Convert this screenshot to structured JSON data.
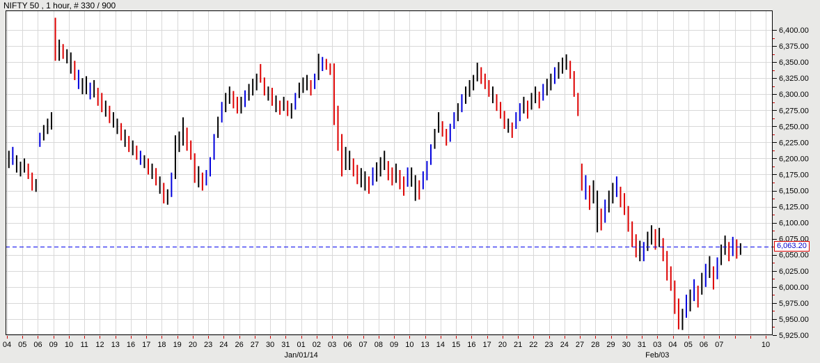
{
  "title": "NIFTY 50 , 1 hour, # 330 / 900",
  "last_price": {
    "label": "6,063.20",
    "value": 6063.2
  },
  "colors": {
    "background": "#e9e9e7",
    "plot_background": "#ffffff",
    "grid": "#d8d8d8",
    "border": "#000000",
    "bar_black": "#000000",
    "bar_red": "#dd0000",
    "bar_blue": "#0000dd",
    "dashed_line": "#0000ee",
    "minor_tick_red": "#cc0000",
    "price_label_text": "#0000cc",
    "price_label_border": "#e00000"
  },
  "chart_data": {
    "type": "bar",
    "style": "hlc-vertical-range-bars",
    "title": "NIFTY 50 , 1 hour, # 330 / 900",
    "xlabel": "",
    "ylabel": "",
    "grid": true,
    "legend": "none",
    "y_axis": {
      "tick_max": 6400,
      "tick_min": 5925,
      "step": 25,
      "labels": [
        "6,400.00",
        "6,375.00",
        "6,350.00",
        "6,325.00",
        "6,300.00",
        "6,275.00",
        "6,250.00",
        "6,225.00",
        "6,200.00",
        "6,175.00",
        "6,150.00",
        "6,125.00",
        "6,100.00",
        "6,075.00",
        "6,050.00",
        "6,025.00",
        "6,000.00",
        "5,975.00",
        "5,950.00",
        "5,925.00"
      ]
    },
    "x_axis": {
      "slot_count": 50,
      "labels": [
        {
          "t": "04",
          "s": 0
        },
        {
          "t": "05",
          "s": 1
        },
        {
          "t": "06",
          "s": 2
        },
        {
          "t": "09",
          "s": 3
        },
        {
          "t": "10",
          "s": 4
        },
        {
          "t": "11",
          "s": 5
        },
        {
          "t": "12",
          "s": 6
        },
        {
          "t": "13",
          "s": 7
        },
        {
          "t": "16",
          "s": 8
        },
        {
          "t": "17",
          "s": 9
        },
        {
          "t": "18",
          "s": 10
        },
        {
          "t": "19",
          "s": 11
        },
        {
          "t": "20",
          "s": 12
        },
        {
          "t": "23",
          "s": 13
        },
        {
          "t": "24",
          "s": 14
        },
        {
          "t": "26",
          "s": 15
        },
        {
          "t": "27",
          "s": 16
        },
        {
          "t": "30",
          "s": 17
        },
        {
          "t": "31",
          "s": 18
        },
        {
          "t": "01",
          "s": 19
        },
        {
          "t": "02",
          "s": 20
        },
        {
          "t": "03",
          "s": 21
        },
        {
          "t": "06",
          "s": 22
        },
        {
          "t": "07",
          "s": 23
        },
        {
          "t": "08",
          "s": 24
        },
        {
          "t": "09",
          "s": 25
        },
        {
          "t": "10",
          "s": 26
        },
        {
          "t": "13",
          "s": 27
        },
        {
          "t": "14",
          "s": 28
        },
        {
          "t": "15",
          "s": 29
        },
        {
          "t": "16",
          "s": 30
        },
        {
          "t": "17",
          "s": 31
        },
        {
          "t": "20",
          "s": 32
        },
        {
          "t": "21",
          "s": 33
        },
        {
          "t": "22",
          "s": 34
        },
        {
          "t": "23",
          "s": 35
        },
        {
          "t": "24",
          "s": 36
        },
        {
          "t": "27",
          "s": 37
        },
        {
          "t": "28",
          "s": 38
        },
        {
          "t": "29",
          "s": 39
        },
        {
          "t": "30",
          "s": 40
        },
        {
          "t": "31",
          "s": 41
        },
        {
          "t": "03",
          "s": 42
        },
        {
          "t": "04",
          "s": 43
        },
        {
          "t": "05",
          "s": 44
        },
        {
          "t": "06",
          "s": 45
        },
        {
          "t": "07",
          "s": 46
        },
        {
          "t": "10",
          "s": 49
        }
      ],
      "month_labels": [
        {
          "t": "Jan/01/14",
          "s": 19
        },
        {
          "t": "Feb/03",
          "s": 42
        }
      ]
    },
    "last_price": 6063.2,
    "bars_per_day": 4,
    "bars": [
      [
        6212,
        6185,
        "k"
      ],
      [
        6218,
        6190,
        "b"
      ],
      [
        6205,
        6178,
        "k"
      ],
      [
        6195,
        6172,
        "k"
      ],
      [
        6200,
        6178,
        "k"
      ],
      [
        6192,
        6168,
        "r"
      ],
      [
        6178,
        6150,
        "r"
      ],
      [
        6168,
        6148,
        "k"
      ],
      [
        6240,
        6218,
        "b"
      ],
      [
        6252,
        6228,
        "k"
      ],
      [
        6262,
        6238,
        "k"
      ],
      [
        6272,
        6245,
        "k"
      ],
      [
        6419,
        6352,
        "r"
      ],
      [
        6385,
        6352,
        "k"
      ],
      [
        6378,
        6355,
        "r"
      ],
      [
        6370,
        6348,
        "k"
      ],
      [
        6365,
        6332,
        "k"
      ],
      [
        6352,
        6322,
        "r"
      ],
      [
        6338,
        6308,
        "b"
      ],
      [
        6325,
        6300,
        "k"
      ],
      [
        6328,
        6300,
        "k"
      ],
      [
        6318,
        6292,
        "b"
      ],
      [
        6322,
        6295,
        "k"
      ],
      [
        6310,
        6282,
        "r"
      ],
      [
        6302,
        6272,
        "r"
      ],
      [
        6290,
        6265,
        "k"
      ],
      [
        6282,
        6255,
        "r"
      ],
      [
        6272,
        6248,
        "k"
      ],
      [
        6262,
        6238,
        "k"
      ],
      [
        6255,
        6228,
        "r"
      ],
      [
        6245,
        6218,
        "k"
      ],
      [
        6235,
        6210,
        "r"
      ],
      [
        6228,
        6205,
        "k"
      ],
      [
        6220,
        6198,
        "r"
      ],
      [
        6212,
        6190,
        "b"
      ],
      [
        6205,
        6185,
        "k"
      ],
      [
        6200,
        6175,
        "r"
      ],
      [
        6192,
        6168,
        "k"
      ],
      [
        6185,
        6158,
        "r"
      ],
      [
        6172,
        6145,
        "k"
      ],
      [
        6162,
        6130,
        "r"
      ],
      [
        6152,
        6128,
        "k"
      ],
      [
        6178,
        6140,
        "b"
      ],
      [
        6236,
        6168,
        "k"
      ],
      [
        6242,
        6210,
        "k"
      ],
      [
        6264,
        6220,
        "k"
      ],
      [
        6248,
        6212,
        "r"
      ],
      [
        6228,
        6198,
        "r"
      ],
      [
        6208,
        6162,
        "r"
      ],
      [
        6188,
        6155,
        "k"
      ],
      [
        6178,
        6150,
        "r"
      ],
      [
        6182,
        6158,
        "b"
      ],
      [
        6202,
        6172,
        "b"
      ],
      [
        6238,
        6198,
        "b"
      ],
      [
        6265,
        6232,
        "k"
      ],
      [
        6288,
        6256,
        "b"
      ],
      [
        6302,
        6272,
        "k"
      ],
      [
        6312,
        6285,
        "k"
      ],
      [
        6305,
        6278,
        "r"
      ],
      [
        6296,
        6270,
        "r"
      ],
      [
        6296,
        6270,
        "k"
      ],
      [
        6306,
        6280,
        "b"
      ],
      [
        6316,
        6290,
        "k"
      ],
      [
        6324,
        6298,
        "k"
      ],
      [
        6332,
        6306,
        "k"
      ],
      [
        6347,
        6318,
        "r"
      ],
      [
        6326,
        6298,
        "r"
      ],
      [
        6312,
        6290,
        "k"
      ],
      [
        6310,
        6282,
        "r"
      ],
      [
        6298,
        6272,
        "k"
      ],
      [
        6290,
        6268,
        "r"
      ],
      [
        6296,
        6274,
        "k"
      ],
      [
        6290,
        6266,
        "r"
      ],
      [
        6286,
        6262,
        "k"
      ],
      [
        6302,
        6276,
        "b"
      ],
      [
        6318,
        6294,
        "k"
      ],
      [
        6326,
        6302,
        "k"
      ],
      [
        6330,
        6306,
        "k"
      ],
      [
        6322,
        6298,
        "r"
      ],
      [
        6332,
        6308,
        "b"
      ],
      [
        6363,
        6322,
        "k"
      ],
      [
        6358,
        6336,
        "b"
      ],
      [
        6355,
        6338,
        "r"
      ],
      [
        6348,
        6330,
        "r"
      ],
      [
        6348,
        6252,
        "r"
      ],
      [
        6282,
        6212,
        "r"
      ],
      [
        6238,
        6172,
        "r"
      ],
      [
        6218,
        6182,
        "k"
      ],
      [
        6212,
        6182,
        "k"
      ],
      [
        6200,
        6172,
        "r"
      ],
      [
        6190,
        6160,
        "r"
      ],
      [
        6185,
        6155,
        "k"
      ],
      [
        6180,
        6150,
        "k"
      ],
      [
        6172,
        6145,
        "r"
      ],
      [
        6186,
        6158,
        "b"
      ],
      [
        6194,
        6164,
        "k"
      ],
      [
        6202,
        6172,
        "k"
      ],
      [
        6212,
        6182,
        "k"
      ],
      [
        6196,
        6166,
        "r"
      ],
      [
        6186,
        6158,
        "r"
      ],
      [
        6192,
        6162,
        "k"
      ],
      [
        6182,
        6152,
        "r"
      ],
      [
        6172,
        6142,
        "r"
      ],
      [
        6186,
        6156,
        "b"
      ],
      [
        6186,
        6156,
        "k"
      ],
      [
        6174,
        6134,
        "k"
      ],
      [
        6166,
        6136,
        "r"
      ],
      [
        6180,
        6152,
        "b"
      ],
      [
        6196,
        6166,
        "b"
      ],
      [
        6222,
        6190,
        "b"
      ],
      [
        6246,
        6215,
        "k"
      ],
      [
        6272,
        6240,
        "k"
      ],
      [
        6258,
        6234,
        "r"
      ],
      [
        6246,
        6220,
        "r"
      ],
      [
        6254,
        6226,
        "b"
      ],
      [
        6272,
        6246,
        "b"
      ],
      [
        6286,
        6258,
        "k"
      ],
      [
        6300,
        6272,
        "b"
      ],
      [
        6312,
        6285,
        "k"
      ],
      [
        6322,
        6296,
        "k"
      ],
      [
        6330,
        6306,
        "k"
      ],
      [
        6349,
        6320,
        "k"
      ],
      [
        6342,
        6316,
        "r"
      ],
      [
        6332,
        6308,
        "r"
      ],
      [
        6322,
        6296,
        "r"
      ],
      [
        6312,
        6286,
        "k"
      ],
      [
        6300,
        6274,
        "r"
      ],
      [
        6288,
        6262,
        "r"
      ],
      [
        6274,
        6246,
        "r"
      ],
      [
        6262,
        6240,
        "k"
      ],
      [
        6256,
        6232,
        "r"
      ],
      [
        6272,
        6246,
        "b"
      ],
      [
        6286,
        6258,
        "b"
      ],
      [
        6296,
        6270,
        "k"
      ],
      [
        6290,
        6262,
        "r"
      ],
      [
        6302,
        6276,
        "k"
      ],
      [
        6312,
        6286,
        "k"
      ],
      [
        6304,
        6278,
        "r"
      ],
      [
        6316,
        6290,
        "b"
      ],
      [
        6324,
        6298,
        "k"
      ],
      [
        6332,
        6306,
        "k"
      ],
      [
        6342,
        6316,
        "b"
      ],
      [
        6350,
        6324,
        "k"
      ],
      [
        6357,
        6332,
        "k"
      ],
      [
        6362,
        6338,
        "k"
      ],
      [
        6352,
        6324,
        "r"
      ],
      [
        6336,
        6296,
        "r"
      ],
      [
        6302,
        6266,
        "r"
      ],
      [
        6192,
        6150,
        "r"
      ],
      [
        6174,
        6136,
        "b"
      ],
      [
        6158,
        6120,
        "r"
      ],
      [
        6166,
        6130,
        "k"
      ],
      [
        6150,
        6085,
        "k"
      ],
      [
        6122,
        6088,
        "r"
      ],
      [
        6136,
        6100,
        "b"
      ],
      [
        6150,
        6116,
        "k"
      ],
      [
        6162,
        6130,
        "k"
      ],
      [
        6172,
        6140,
        "b"
      ],
      [
        6156,
        6124,
        "r"
      ],
      [
        6146,
        6112,
        "r"
      ],
      [
        6126,
        6086,
        "r"
      ],
      [
        6102,
        6062,
        "r"
      ],
      [
        6082,
        6046,
        "r"
      ],
      [
        6072,
        6040,
        "k"
      ],
      [
        6070,
        6040,
        "b"
      ],
      [
        6086,
        6056,
        "k"
      ],
      [
        6096,
        6066,
        "k"
      ],
      [
        6090,
        6058,
        "r"
      ],
      [
        6092,
        6062,
        "k"
      ],
      [
        6076,
        6040,
        "r"
      ],
      [
        6056,
        6010,
        "r"
      ],
      [
        6032,
        5994,
        "r"
      ],
      [
        6010,
        5958,
        "r"
      ],
      [
        5982,
        5934,
        "r"
      ],
      [
        5966,
        5933,
        "k"
      ],
      [
        5988,
        5952,
        "b"
      ],
      [
        5996,
        5962,
        "k"
      ],
      [
        6012,
        5978,
        "b"
      ],
      [
        6002,
        5968,
        "r"
      ],
      [
        6022,
        5988,
        "k"
      ],
      [
        6036,
        6000,
        "b"
      ],
      [
        6048,
        6014,
        "k"
      ],
      [
        6032,
        5996,
        "r"
      ],
      [
        6046,
        6012,
        "b"
      ],
      [
        6066,
        6034,
        "k"
      ],
      [
        6080,
        6050,
        "k"
      ],
      [
        6070,
        6040,
        "r"
      ],
      [
        6078,
        6048,
        "b"
      ],
      [
        6074,
        6044,
        "r"
      ],
      [
        6068,
        6050,
        "k"
      ]
    ]
  }
}
